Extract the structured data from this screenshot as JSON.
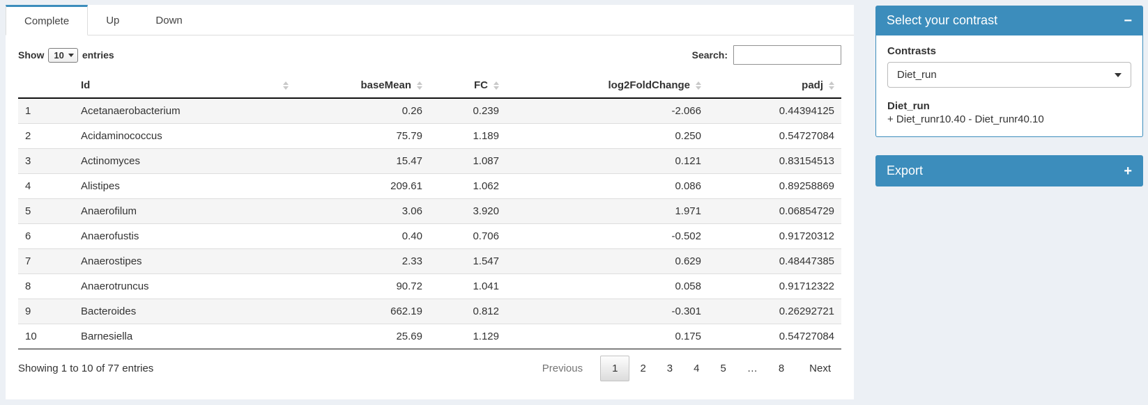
{
  "colors": {
    "accent": "#3c8dbc",
    "page_bg": "#ecf0f5",
    "stripe": "#f5f5f5"
  },
  "tabs": [
    {
      "label": "Complete",
      "active": true
    },
    {
      "label": "Up",
      "active": false
    },
    {
      "label": "Down",
      "active": false
    }
  ],
  "length_control": {
    "before": "Show",
    "value": "10",
    "after": "entries"
  },
  "search": {
    "label": "Search:",
    "value": ""
  },
  "table": {
    "columns": [
      {
        "label": "",
        "align": "left",
        "sortable": false
      },
      {
        "label": "Id",
        "align": "left",
        "sortable": true
      },
      {
        "label": "baseMean",
        "align": "right",
        "sortable": true
      },
      {
        "label": "FC",
        "align": "right",
        "sortable": true
      },
      {
        "label": "log2FoldChange",
        "align": "right",
        "sortable": true
      },
      {
        "label": "padj",
        "align": "right",
        "sortable": true
      }
    ],
    "rows": [
      [
        "1",
        "Acetanaerobacterium",
        "0.26",
        "0.239",
        "-2.066",
        "0.44394125"
      ],
      [
        "2",
        "Acidaminococcus",
        "75.79",
        "1.189",
        "0.250",
        "0.54727084"
      ],
      [
        "3",
        "Actinomyces",
        "15.47",
        "1.087",
        "0.121",
        "0.83154513"
      ],
      [
        "4",
        "Alistipes",
        "209.61",
        "1.062",
        "0.086",
        "0.89258869"
      ],
      [
        "5",
        "Anaerofilum",
        "3.06",
        "3.920",
        "1.971",
        "0.06854729"
      ],
      [
        "6",
        "Anaerofustis",
        "0.40",
        "0.706",
        "-0.502",
        "0.91720312"
      ],
      [
        "7",
        "Anaerostipes",
        "2.33",
        "1.547",
        "0.629",
        "0.48447385"
      ],
      [
        "8",
        "Anaerotruncus",
        "90.72",
        "1.041",
        "0.058",
        "0.91712322"
      ],
      [
        "9",
        "Bacteroides",
        "662.19",
        "0.812",
        "-0.301",
        "0.26292721"
      ],
      [
        "10",
        "Barnesiella",
        "25.69",
        "1.129",
        "0.175",
        "0.54727084"
      ]
    ]
  },
  "footer": {
    "info": "Showing 1 to 10 of 77 entries"
  },
  "pagination": {
    "previous": "Previous",
    "pages": [
      "1",
      "2",
      "3",
      "4",
      "5",
      "…",
      "8"
    ],
    "current": "1",
    "next": "Next"
  },
  "contrast_box": {
    "title": "Select your contrast",
    "collapse_icon": "−",
    "field_label": "Contrasts",
    "selected": "Diet_run",
    "detail_name": "Diet_run",
    "detail_formula": "+ Diet_runr10.40 - Diet_runr40.10"
  },
  "export_box": {
    "title": "Export",
    "collapse_icon": "+"
  }
}
